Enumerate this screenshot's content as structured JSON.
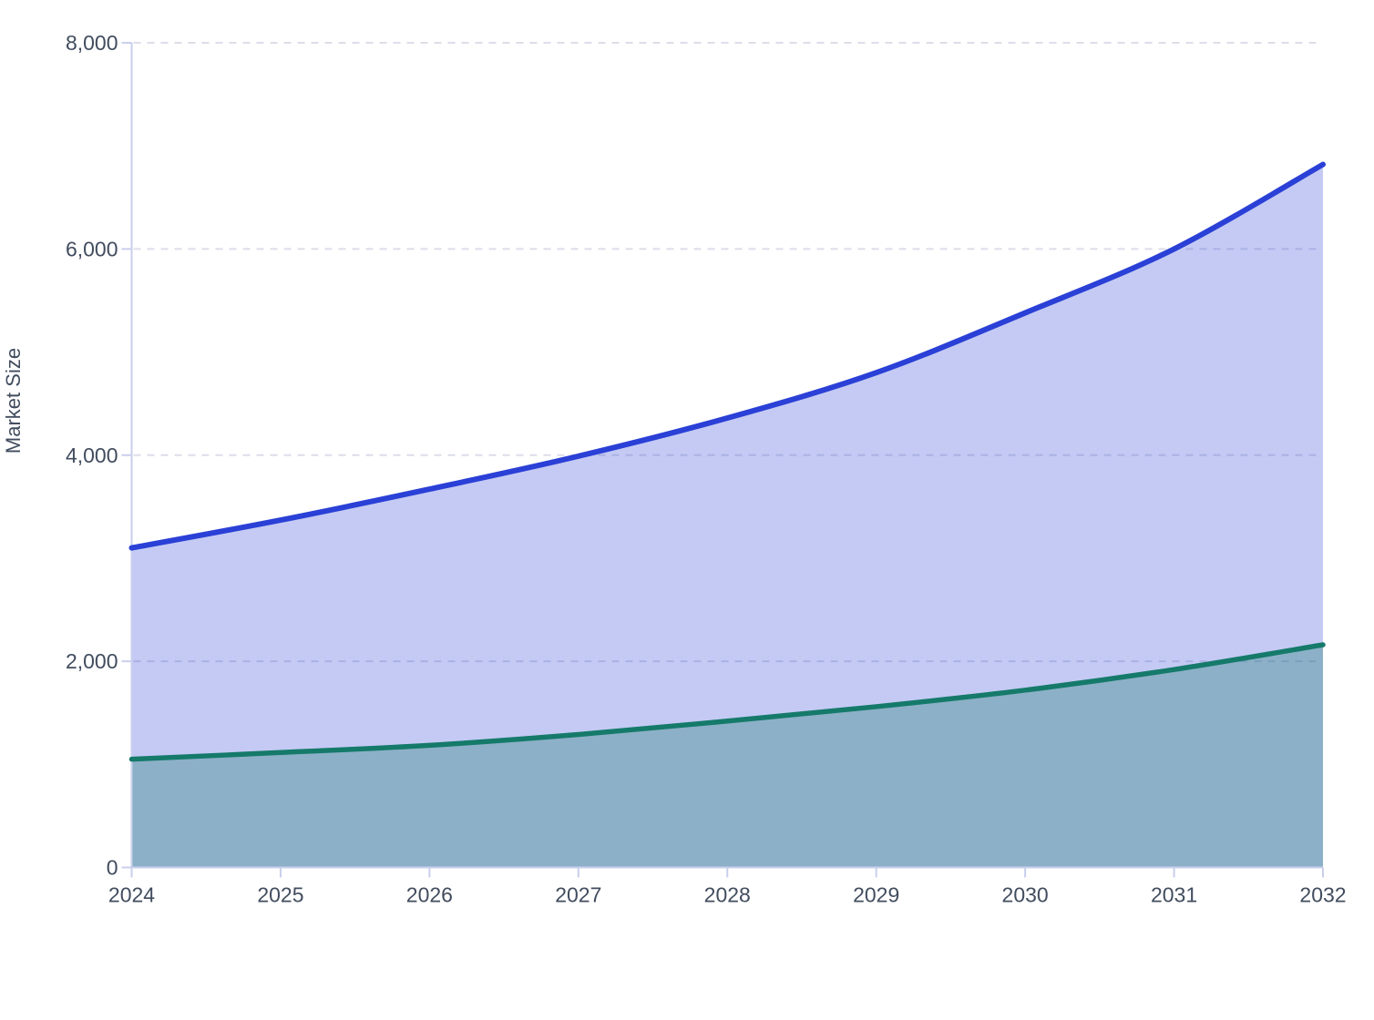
{
  "page": {
    "background_color": "#ffffff"
  },
  "chart_data": {
    "type": "area",
    "title": "",
    "xlabel": "",
    "ylabel": "Market Size",
    "legend": "none",
    "grid": "horizontal-dashed",
    "x": [
      2024,
      2025,
      2026,
      2027,
      2028,
      2029,
      2030,
      2031,
      2032
    ],
    "x_tick_labels": [
      "2024",
      "2025",
      "2026",
      "2027",
      "2028",
      "2029",
      "2030",
      "2031",
      "2032"
    ],
    "y_ticks": [
      0,
      2000,
      4000,
      6000,
      8000
    ],
    "y_tick_labels": [
      "0",
      "2,000",
      "4,000",
      "6,000",
      "8,000"
    ],
    "ylim": [
      0,
      8000
    ],
    "series": [
      {
        "id": "upper-series",
        "line_color": "#2a40d6",
        "fill_color": "rgba(43,64,214,0.28)",
        "values": [
          3100,
          3370,
          3670,
          3990,
          4360,
          4800,
          5380,
          6000,
          6820
        ]
      },
      {
        "id": "lower-series",
        "line_color": "#157a6a",
        "fill_color": "rgba(21,122,106,0.32)",
        "values": [
          1050,
          1115,
          1185,
          1290,
          1420,
          1560,
          1720,
          1920,
          2160
        ]
      }
    ],
    "colors": {
      "axis": "#c9cfec",
      "grid": "#dcdee9",
      "tick_text": "#414c5e"
    }
  }
}
